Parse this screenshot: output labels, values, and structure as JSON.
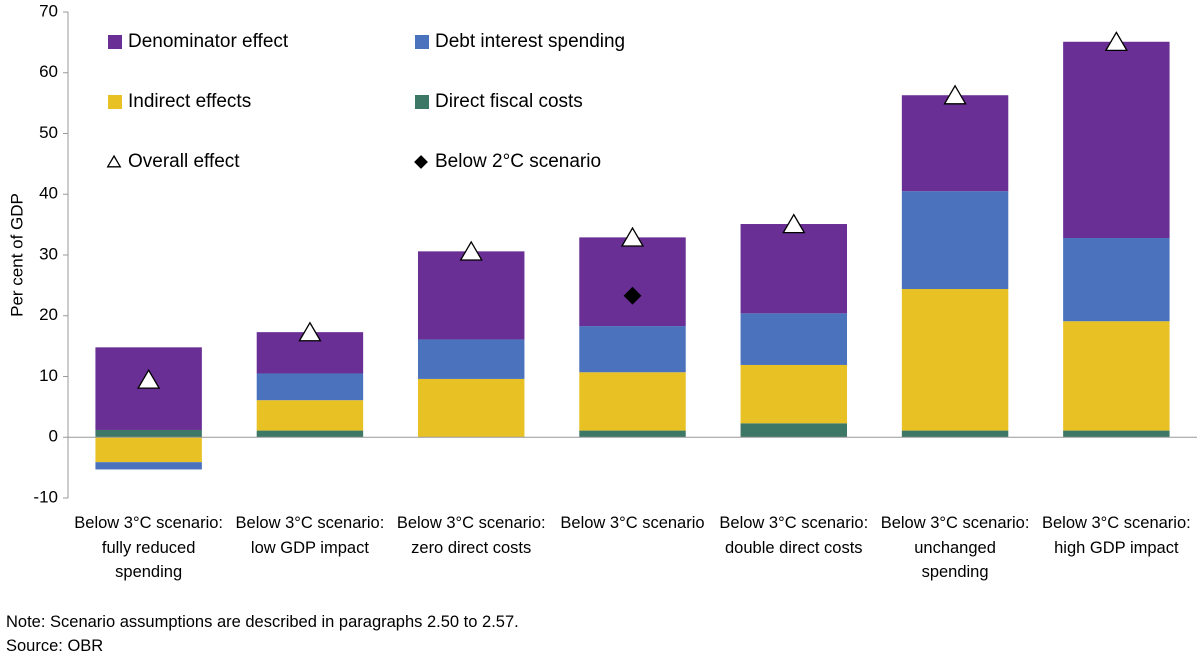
{
  "chart_data": {
    "type": "bar",
    "stacked": true,
    "ylabel": "Per cent of GDP",
    "categories": [
      "Below 3°C scenario: fully reduced spending",
      "Below 3°C scenario: low GDP impact",
      "Below 3°C scenario: zero direct costs",
      "Below 3°C scenario",
      "Below 3°C scenario: double direct costs",
      "Below 3°C scenario: unchanged spending",
      "Below 3°C scenario: high GDP impact"
    ],
    "series": [
      {
        "name": "Denominator effect",
        "color": "#6a2f95",
        "values": [
          13.6,
          6.8,
          14.5,
          14.6,
          14.7,
          15.8,
          32.3
        ]
      },
      {
        "name": "Debt interest spending",
        "color": "#4a72bd",
        "values": [
          -1.2,
          4.4,
          6.5,
          7.6,
          8.5,
          16.1,
          13.7
        ]
      },
      {
        "name": "Indirect effects",
        "color": "#e8c124",
        "values": [
          -4.1,
          5.0,
          9.6,
          9.6,
          9.6,
          23.3,
          18.0
        ]
      },
      {
        "name": "Direct fiscal costs",
        "color": "#3d7866",
        "values": [
          1.2,
          1.1,
          0,
          1.1,
          2.3,
          1.1,
          1.1
        ]
      }
    ],
    "markers": [
      {
        "name": "Overall effect",
        "symbol": "triangle",
        "color": "#ffffff",
        "values": [
          9.4,
          17.2,
          30.5,
          32.8,
          35.0,
          56.2,
          65.0
        ]
      },
      {
        "name": "Below 2°C scenario",
        "symbol": "diamond",
        "color": "#000000",
        "values": [
          null,
          null,
          null,
          23.3,
          null,
          null,
          null
        ]
      }
    ],
    "ylim": [
      -10,
      70
    ],
    "yticks": [
      -10,
      0,
      10,
      20,
      30,
      40,
      50,
      60,
      70
    ],
    "note": "Note: Scenario assumptions are described in paragraphs 2.50 to 2.57.",
    "source": "Source: OBR"
  }
}
